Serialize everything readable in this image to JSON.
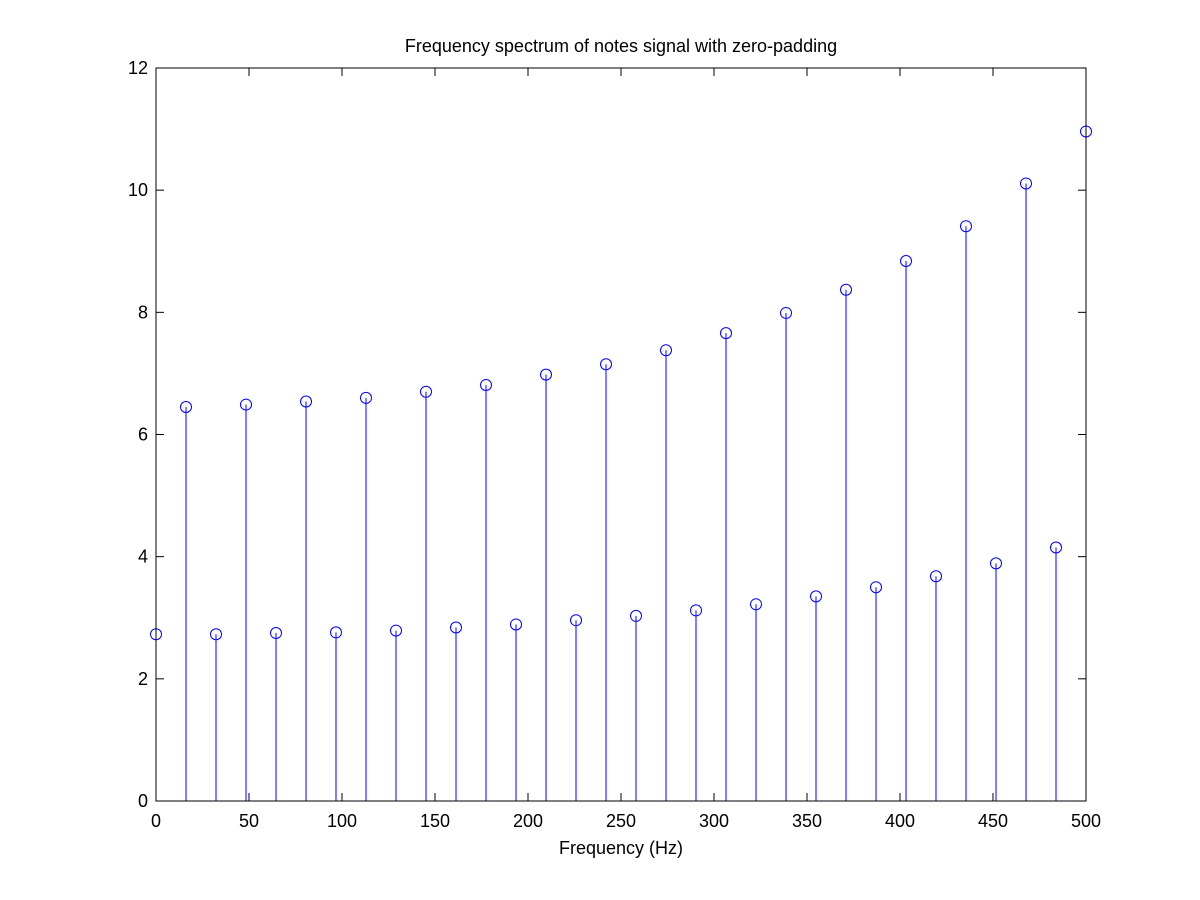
{
  "chart_data": {
    "type": "stem",
    "title": "Frequency spectrum of notes signal with zero-padding",
    "xlabel": "Frequency (Hz)",
    "ylabel": "",
    "xlim": [
      0,
      500
    ],
    "ylim": [
      0,
      12
    ],
    "x_ticks": [
      0,
      50,
      100,
      150,
      200,
      250,
      300,
      350,
      400,
      450,
      500
    ],
    "y_ticks": [
      0,
      2,
      4,
      6,
      8,
      10,
      12
    ],
    "x_tick_labels": [
      "0",
      "50",
      "100",
      "150",
      "200",
      "250",
      "300",
      "350",
      "400",
      "450",
      "500"
    ],
    "y_tick_labels": [
      "0",
      "2",
      "4",
      "6",
      "8",
      "10",
      "12"
    ],
    "grid": false,
    "marker": "circle",
    "color": "#0000ff",
    "series": [
      {
        "x": [
          0,
          16.13,
          32.26,
          48.39,
          64.52,
          80.65,
          96.77,
          112.9,
          129.03,
          145.16,
          161.29,
          177.42,
          193.55,
          209.68,
          225.81,
          241.94,
          258.06,
          274.19,
          290.32,
          306.45,
          322.58,
          338.71,
          354.84,
          370.97,
          387.1,
          403.23,
          419.35,
          435.48,
          451.61,
          467.74,
          483.87,
          500
        ],
        "y": [
          2.73,
          6.45,
          2.73,
          6.49,
          2.75,
          6.54,
          2.76,
          6.6,
          2.79,
          6.7,
          2.84,
          6.81,
          2.89,
          6.98,
          2.96,
          7.15,
          3.03,
          7.38,
          3.12,
          7.66,
          3.22,
          7.99,
          3.35,
          8.37,
          3.5,
          8.84,
          3.68,
          9.41,
          3.89,
          10.11,
          4.15,
          10.96
        ]
      }
    ]
  }
}
